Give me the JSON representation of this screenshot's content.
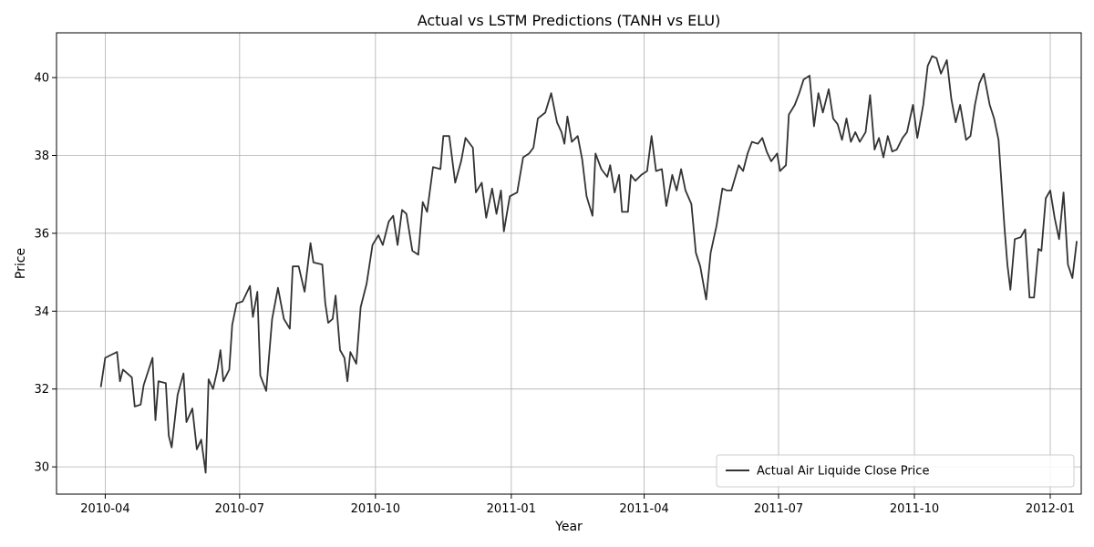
{
  "chart_data": {
    "type": "line",
    "title": "Actual vs LSTM Predictions (TANH vs ELU)",
    "xlabel": "Year",
    "ylabel": "Price",
    "xlim": [
      "2010-02-27",
      "2012-01-22"
    ],
    "ylim": [
      29.3,
      41.15
    ],
    "x_ticks": [
      {
        "date": "2010-04-01",
        "label": "2010-04"
      },
      {
        "date": "2010-07-01",
        "label": "2010-07"
      },
      {
        "date": "2010-10-01",
        "label": "2010-10"
      },
      {
        "date": "2011-01-01",
        "label": "2011-01"
      },
      {
        "date": "2011-04-01",
        "label": "2011-04"
      },
      {
        "date": "2011-07-01",
        "label": "2011-07"
      },
      {
        "date": "2011-10-01",
        "label": "2011-10"
      },
      {
        "date": "2012-01-01",
        "label": "2012-01"
      }
    ],
    "y_ticks": [
      30,
      32,
      34,
      36,
      38,
      40
    ],
    "grid": true,
    "legend_position": "lower-right",
    "series": [
      {
        "name": "Actual Air Liquide Close Price",
        "color": "#333333",
        "points": [
          [
            "2010-03-29",
            32.05
          ],
          [
            "2010-04-01",
            32.8
          ],
          [
            "2010-04-09",
            32.95
          ],
          [
            "2010-04-11",
            32.2
          ],
          [
            "2010-04-13",
            32.5
          ],
          [
            "2010-04-19",
            32.3
          ],
          [
            "2010-04-21",
            31.55
          ],
          [
            "2010-04-25",
            31.6
          ],
          [
            "2010-04-27",
            32.1
          ],
          [
            "2010-05-03",
            32.8
          ],
          [
            "2010-05-05",
            31.2
          ],
          [
            "2010-05-07",
            32.2
          ],
          [
            "2010-05-12",
            32.15
          ],
          [
            "2010-05-14",
            30.8
          ],
          [
            "2010-05-16",
            30.5
          ],
          [
            "2010-05-20",
            31.85
          ],
          [
            "2010-05-24",
            32.4
          ],
          [
            "2010-05-26",
            31.15
          ],
          [
            "2010-05-30",
            31.5
          ],
          [
            "2010-06-02",
            30.45
          ],
          [
            "2010-06-05",
            30.7
          ],
          [
            "2010-06-08",
            29.85
          ],
          [
            "2010-06-10",
            32.25
          ],
          [
            "2010-06-13",
            32.0
          ],
          [
            "2010-06-16",
            32.5
          ],
          [
            "2010-06-18",
            33.0
          ],
          [
            "2010-06-20",
            32.2
          ],
          [
            "2010-06-24",
            32.5
          ],
          [
            "2010-06-26",
            33.65
          ],
          [
            "2010-06-29",
            34.2
          ],
          [
            "2010-07-03",
            34.25
          ],
          [
            "2010-07-08",
            34.65
          ],
          [
            "2010-07-10",
            33.85
          ],
          [
            "2010-07-13",
            34.5
          ],
          [
            "2010-07-15",
            32.35
          ],
          [
            "2010-07-19",
            31.95
          ],
          [
            "2010-07-23",
            33.8
          ],
          [
            "2010-07-27",
            34.6
          ],
          [
            "2010-07-31",
            33.8
          ],
          [
            "2010-08-04",
            33.55
          ],
          [
            "2010-08-06",
            35.15
          ],
          [
            "2010-08-10",
            35.15
          ],
          [
            "2010-08-14",
            34.5
          ],
          [
            "2010-08-18",
            35.75
          ],
          [
            "2010-08-20",
            35.25
          ],
          [
            "2010-08-26",
            35.2
          ],
          [
            "2010-08-28",
            34.2
          ],
          [
            "2010-08-30",
            33.7
          ],
          [
            "2010-09-02",
            33.8
          ],
          [
            "2010-09-04",
            34.4
          ],
          [
            "2010-09-07",
            33.0
          ],
          [
            "2010-09-10",
            32.8
          ],
          [
            "2010-09-12",
            32.2
          ],
          [
            "2010-09-14",
            32.95
          ],
          [
            "2010-09-18",
            32.65
          ],
          [
            "2010-09-21",
            34.1
          ],
          [
            "2010-09-25",
            34.7
          ],
          [
            "2010-09-29",
            35.7
          ],
          [
            "2010-10-03",
            35.95
          ],
          [
            "2010-10-06",
            35.7
          ],
          [
            "2010-10-10",
            36.3
          ],
          [
            "2010-10-13",
            36.45
          ],
          [
            "2010-10-16",
            35.7
          ],
          [
            "2010-10-19",
            36.6
          ],
          [
            "2010-10-22",
            36.5
          ],
          [
            "2010-10-26",
            35.55
          ],
          [
            "2010-10-30",
            35.45
          ],
          [
            "2010-11-02",
            36.8
          ],
          [
            "2010-11-05",
            36.55
          ],
          [
            "2010-11-09",
            37.7
          ],
          [
            "2010-11-14",
            37.65
          ],
          [
            "2010-11-16",
            38.5
          ],
          [
            "2010-11-20",
            38.5
          ],
          [
            "2010-11-24",
            37.3
          ],
          [
            "2010-11-28",
            37.85
          ],
          [
            "2010-12-01",
            38.45
          ],
          [
            "2010-12-06",
            38.2
          ],
          [
            "2010-12-08",
            37.05
          ],
          [
            "2010-12-12",
            37.3
          ],
          [
            "2010-12-15",
            36.4
          ],
          [
            "2010-12-19",
            37.15
          ],
          [
            "2010-12-22",
            36.5
          ],
          [
            "2010-12-25",
            37.1
          ],
          [
            "2010-12-27",
            36.05
          ],
          [
            "2010-12-31",
            36.95
          ],
          [
            "2011-01-05",
            37.05
          ],
          [
            "2011-01-09",
            37.95
          ],
          [
            "2011-01-13",
            38.05
          ],
          [
            "2011-01-16",
            38.2
          ],
          [
            "2011-01-19",
            38.95
          ],
          [
            "2011-01-24",
            39.1
          ],
          [
            "2011-01-28",
            39.6
          ],
          [
            "2011-02-01",
            38.85
          ],
          [
            "2011-02-04",
            38.6
          ],
          [
            "2011-02-06",
            38.3
          ],
          [
            "2011-02-08",
            39.0
          ],
          [
            "2011-02-11",
            38.35
          ],
          [
            "2011-02-15",
            38.5
          ],
          [
            "2011-02-18",
            37.9
          ],
          [
            "2011-02-21",
            36.95
          ],
          [
            "2011-02-25",
            36.45
          ],
          [
            "2011-02-27",
            38.05
          ],
          [
            "2011-03-03",
            37.65
          ],
          [
            "2011-03-07",
            37.45
          ],
          [
            "2011-03-09",
            37.75
          ],
          [
            "2011-03-12",
            37.05
          ],
          [
            "2011-03-15",
            37.5
          ],
          [
            "2011-03-17",
            36.55
          ],
          [
            "2011-03-21",
            36.55
          ],
          [
            "2011-03-23",
            37.5
          ],
          [
            "2011-03-26",
            37.35
          ],
          [
            "2011-03-30",
            37.5
          ],
          [
            "2011-04-03",
            37.6
          ],
          [
            "2011-04-06",
            38.5
          ],
          [
            "2011-04-09",
            37.6
          ],
          [
            "2011-04-13",
            37.65
          ],
          [
            "2011-04-16",
            36.7
          ],
          [
            "2011-04-20",
            37.5
          ],
          [
            "2011-04-23",
            37.1
          ],
          [
            "2011-04-26",
            37.65
          ],
          [
            "2011-04-29",
            37.1
          ],
          [
            "2011-05-03",
            36.75
          ],
          [
            "2011-05-06",
            35.5
          ],
          [
            "2011-05-09",
            35.15
          ],
          [
            "2011-05-13",
            34.3
          ],
          [
            "2011-05-16",
            35.5
          ],
          [
            "2011-05-20",
            36.2
          ],
          [
            "2011-05-24",
            37.15
          ],
          [
            "2011-05-27",
            37.1
          ],
          [
            "2011-05-30",
            37.1
          ],
          [
            "2011-06-04",
            37.75
          ],
          [
            "2011-06-07",
            37.6
          ],
          [
            "2011-06-10",
            38.05
          ],
          [
            "2011-06-13",
            38.35
          ],
          [
            "2011-06-17",
            38.3
          ],
          [
            "2011-06-20",
            38.45
          ],
          [
            "2011-06-23",
            38.1
          ],
          [
            "2011-06-26",
            37.85
          ],
          [
            "2011-06-30",
            38.05
          ],
          [
            "2011-07-02",
            37.6
          ],
          [
            "2011-07-06",
            37.75
          ],
          [
            "2011-07-08",
            39.05
          ],
          [
            "2011-07-12",
            39.3
          ],
          [
            "2011-07-15",
            39.6
          ],
          [
            "2011-07-18",
            39.95
          ],
          [
            "2011-07-22",
            40.05
          ],
          [
            "2011-07-25",
            38.75
          ],
          [
            "2011-07-28",
            39.6
          ],
          [
            "2011-07-31",
            39.1
          ],
          [
            "2011-08-04",
            39.7
          ],
          [
            "2011-08-07",
            38.95
          ],
          [
            "2011-08-10",
            38.8
          ],
          [
            "2011-08-13",
            38.4
          ],
          [
            "2011-08-16",
            38.95
          ],
          [
            "2011-08-19",
            38.35
          ],
          [
            "2011-08-22",
            38.6
          ],
          [
            "2011-08-25",
            38.35
          ],
          [
            "2011-08-29",
            38.6
          ],
          [
            "2011-09-01",
            39.55
          ],
          [
            "2011-09-04",
            38.15
          ],
          [
            "2011-09-07",
            38.45
          ],
          [
            "2011-09-10",
            37.95
          ],
          [
            "2011-09-13",
            38.5
          ],
          [
            "2011-09-16",
            38.1
          ],
          [
            "2011-09-19",
            38.15
          ],
          [
            "2011-09-23",
            38.45
          ],
          [
            "2011-09-26",
            38.6
          ],
          [
            "2011-09-30",
            39.3
          ],
          [
            "2011-10-03",
            38.45
          ],
          [
            "2011-10-07",
            39.3
          ],
          [
            "2011-10-10",
            40.3
          ],
          [
            "2011-10-13",
            40.55
          ],
          [
            "2011-10-16",
            40.5
          ],
          [
            "2011-10-19",
            40.1
          ],
          [
            "2011-10-23",
            40.45
          ],
          [
            "2011-10-26",
            39.45
          ],
          [
            "2011-10-29",
            38.85
          ],
          [
            "2011-11-01",
            39.3
          ],
          [
            "2011-11-05",
            38.4
          ],
          [
            "2011-11-08",
            38.5
          ],
          [
            "2011-11-11",
            39.3
          ],
          [
            "2011-11-14",
            39.85
          ],
          [
            "2011-11-17",
            40.1
          ],
          [
            "2011-11-21",
            39.3
          ],
          [
            "2011-11-24",
            38.95
          ],
          [
            "2011-11-27",
            38.4
          ],
          [
            "2011-12-01",
            36.15
          ],
          [
            "2011-12-03",
            35.2
          ],
          [
            "2011-12-05",
            34.55
          ],
          [
            "2011-12-08",
            35.85
          ],
          [
            "2011-12-12",
            35.9
          ],
          [
            "2011-12-15",
            36.1
          ],
          [
            "2011-12-18",
            34.35
          ],
          [
            "2011-12-21",
            34.35
          ],
          [
            "2011-12-24",
            35.6
          ],
          [
            "2011-12-26",
            35.55
          ],
          [
            "2011-12-29",
            36.9
          ],
          [
            "2012-01-01",
            37.1
          ],
          [
            "2012-01-04",
            36.4
          ],
          [
            "2012-01-07",
            35.85
          ],
          [
            "2012-01-10",
            37.05
          ],
          [
            "2012-01-13",
            35.2
          ],
          [
            "2012-01-16",
            34.85
          ],
          [
            "2012-01-19",
            35.8
          ]
        ]
      }
    ]
  }
}
